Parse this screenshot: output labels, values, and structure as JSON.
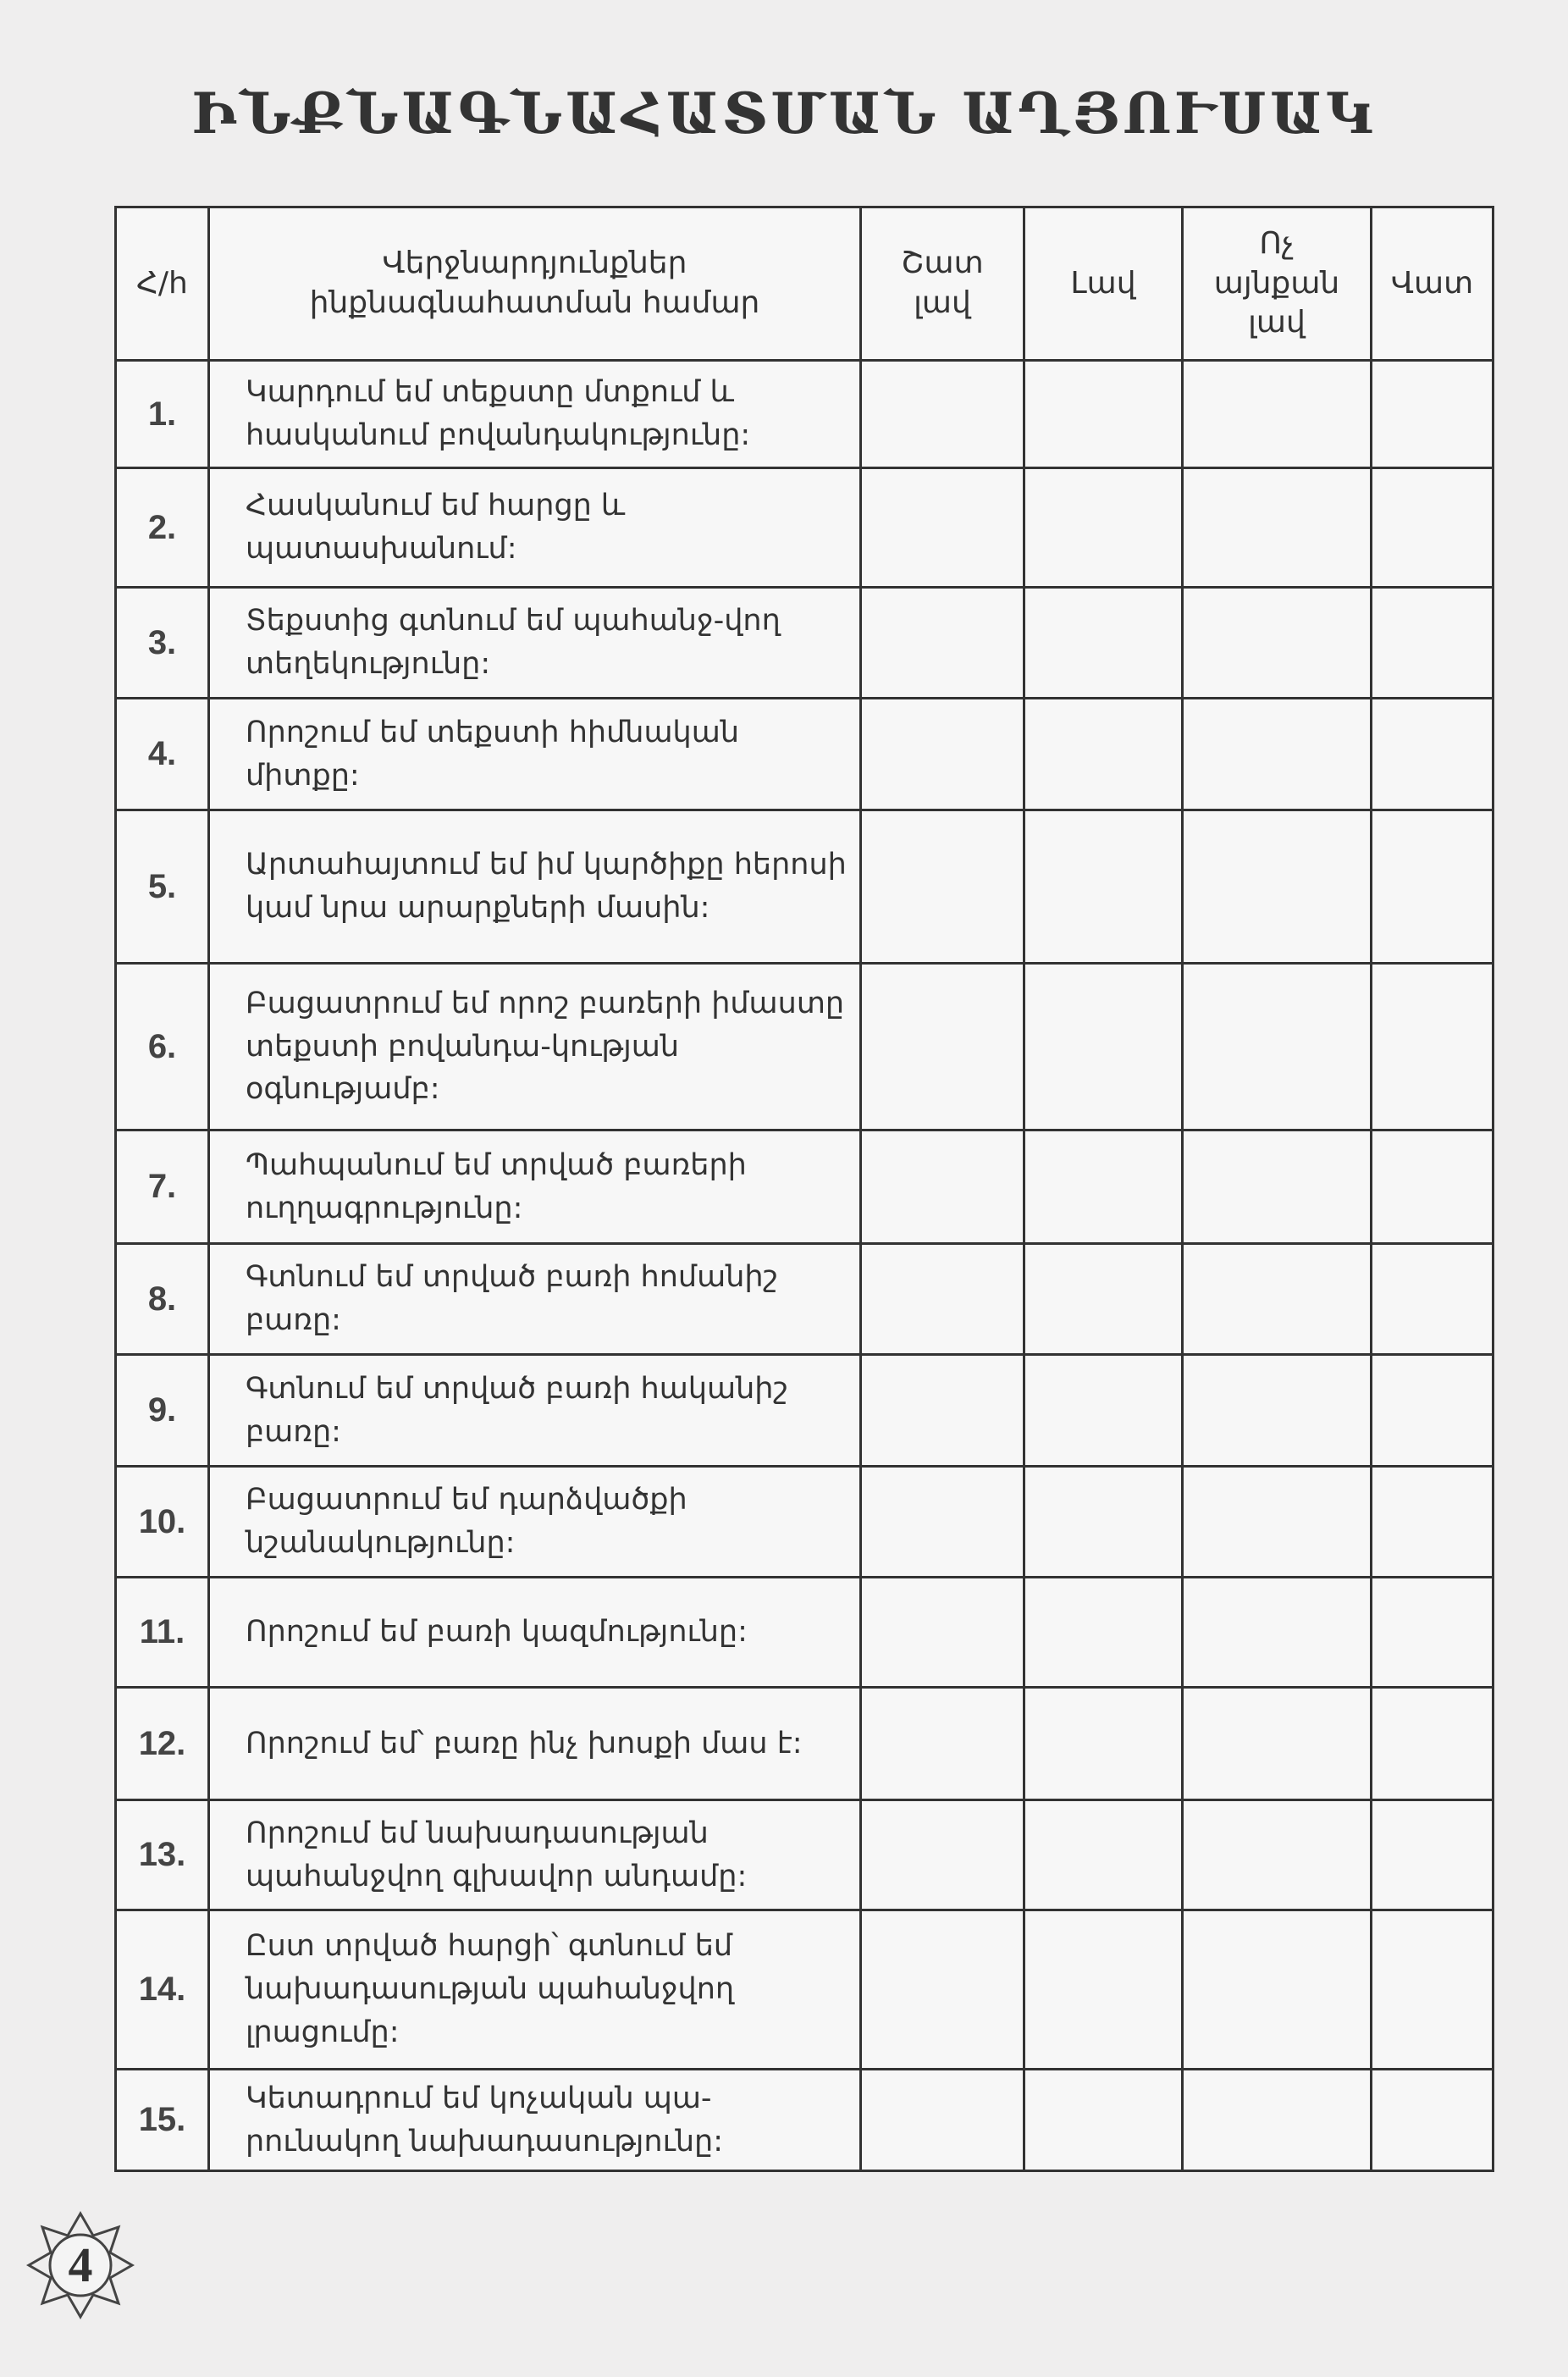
{
  "title": "ԻՆՔՆԱԳՆԱՀԱՏՄԱՆ  ԱՂՅՈՒՍԱԿ",
  "table": {
    "headers": [
      "Հ/h",
      "Վերջնարդյունքներ ինքնագնահատման համար",
      "Շատ լավ",
      "Լավ",
      "Ոչ այնքան լավ",
      "Վատ"
    ],
    "rows": [
      {
        "num": "1.",
        "text": "Կարդում եմ տեքստը մտքում և հասկանում բովանդակությունը:"
      },
      {
        "num": "2.",
        "text": "Հասկանում եմ հարցը և պատասխանում:"
      },
      {
        "num": "3.",
        "text": "Տեքստից գտնում եմ պահանջ-վող տեղեկությունը:"
      },
      {
        "num": "4.",
        "text": "Որոշում եմ տեքստի հիմնական միտքը:"
      },
      {
        "num": "5.",
        "text": "Արտահայտում եմ իմ կարծիքը հերոսի կամ նրա արարքների մասին:"
      },
      {
        "num": "6.",
        "text": "Բացատրում եմ որոշ բառերի իմաստը տեքստի բովանդա-կության օգնությամբ:"
      },
      {
        "num": "7.",
        "text": "Պահպանում եմ տրված բառերի ուղղագրությունը:"
      },
      {
        "num": "8.",
        "text": "Գտնում եմ տրված բառի հոմանիշ բառը:"
      },
      {
        "num": "9.",
        "text": "Գտնում եմ տրված բառի հականիշ բառը:"
      },
      {
        "num": "10.",
        "text": "Բացատրում եմ դարձվածքի նշանակությունը:"
      },
      {
        "num": "11.",
        "text": "Որոշում եմ բառի կազմությունը:"
      },
      {
        "num": "12.",
        "text": "Որոշում եմ՝ բառը ինչ խոսքի մաս է:"
      },
      {
        "num": "13.",
        "text": "Որոշում եմ նախադասության պահանջվող գլխավոր անդամը:"
      },
      {
        "num": "14.",
        "text": "Ըստ տրված հարցի՝ գտնում եմ նախադասության պահանջվող լրացումը:"
      },
      {
        "num": "15.",
        "text": "Կետադրում եմ կոչական պա-րունակող նախադասությունը:"
      }
    ]
  },
  "page_number": "4"
}
